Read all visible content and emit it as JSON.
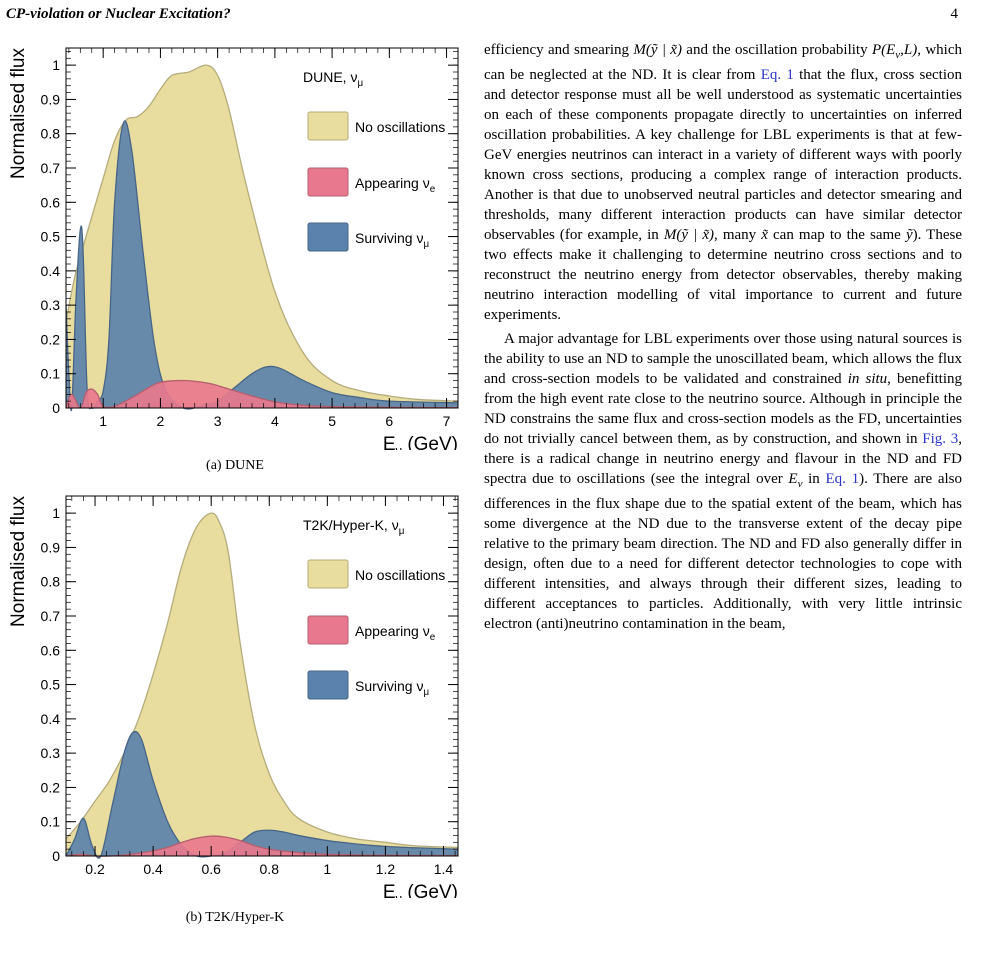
{
  "header": {
    "running_title": "CP-violation or Nuclear Excitation?",
    "page_number": "4"
  },
  "figures": [
    {
      "caption": "(a) DUNE",
      "chart_data": {
        "type": "area",
        "title": "DUNE, ν_μ",
        "xlabel": "E_ν (GeV)",
        "ylabel": "Normalised flux",
        "xlim": [
          0.35,
          7.2
        ],
        "ylim": [
          0,
          1.05
        ],
        "x_ticks": [
          "1",
          "2",
          "3",
          "4",
          "5",
          "6",
          "7"
        ],
        "y_ticks": [
          "0",
          "0.1",
          "0.2",
          "0.3",
          "0.4",
          "0.5",
          "0.6",
          "0.7",
          "0.8",
          "0.9",
          "1"
        ],
        "legend_position": "top-right",
        "series": [
          {
            "name": "No oscillations",
            "color": "#e8dc9e",
            "x": [
              0.35,
              0.5,
              0.7,
              1.0,
              1.2,
              1.4,
              1.6,
              1.8,
              2.0,
              2.2,
              2.5,
              2.8,
              3.0,
              3.2,
              3.5,
              4.0,
              4.5,
              5.0,
              5.5,
              6.0,
              6.5,
              7.2
            ],
            "values": [
              0.25,
              0.38,
              0.5,
              0.67,
              0.78,
              0.84,
              0.85,
              0.88,
              0.93,
              0.97,
              0.98,
              1.0,
              0.97,
              0.87,
              0.65,
              0.34,
              0.16,
              0.08,
              0.05,
              0.035,
              0.025,
              0.02
            ]
          },
          {
            "name": "Appearing ν_e",
            "color": "#e8788d",
            "x": [
              0.35,
              0.45,
              0.6,
              0.7,
              0.8,
              0.9,
              1.0,
              1.2,
              1.5,
              1.8,
              2.0,
              2.3,
              2.6,
              2.9,
              3.2,
              3.6,
              4.0,
              4.5,
              5.0,
              5.5,
              6.0,
              7.2
            ],
            "values": [
              0.0,
              0.04,
              0.0,
              0.045,
              0.055,
              0.04,
              0.005,
              0.005,
              0.03,
              0.06,
              0.075,
              0.08,
              0.078,
              0.07,
              0.055,
              0.035,
              0.018,
              0.008,
              0.004,
              0.003,
              0.002,
              0.001
            ]
          },
          {
            "name": "Surviving ν_μ",
            "color": "#5b82ad",
            "x": [
              0.35,
              0.4,
              0.45,
              0.52,
              0.6,
              0.65,
              0.72,
              0.8,
              0.9,
              1.0,
              1.1,
              1.2,
              1.35,
              1.5,
              1.7,
              1.9,
              2.1,
              2.4,
              2.7,
              3.0,
              3.3,
              3.6,
              3.85,
              4.1,
              4.5,
              5.0,
              5.5,
              6.0,
              7.2
            ],
            "values": [
              0.3,
              0.1,
              0.0,
              0.3,
              0.52,
              0.45,
              0.05,
              0.0,
              0.02,
              0.05,
              0.2,
              0.6,
              0.83,
              0.75,
              0.45,
              0.18,
              0.05,
              0.0,
              0.005,
              0.02,
              0.06,
              0.1,
              0.12,
              0.115,
              0.08,
              0.045,
              0.03,
              0.02,
              0.015
            ]
          }
        ]
      }
    },
    {
      "caption": "(b) T2K/Hyper-K",
      "chart_data": {
        "type": "area",
        "title": "T2K/Hyper-K, ν_μ",
        "xlabel": "E_ν (GeV)",
        "ylabel": "Normalised flux",
        "xlim": [
          0.1,
          1.45
        ],
        "ylim": [
          0,
          1.05
        ],
        "x_ticks": [
          "0.2",
          "0.4",
          "0.6",
          "0.8",
          "1",
          "1.2",
          "1.4"
        ],
        "y_ticks": [
          "0",
          "0.1",
          "0.2",
          "0.3",
          "0.4",
          "0.5",
          "0.6",
          "0.7",
          "0.8",
          "0.9",
          "1"
        ],
        "legend_position": "top-right",
        "series": [
          {
            "name": "No oscillations",
            "color": "#e8dc9e",
            "x": [
              0.1,
              0.15,
              0.2,
              0.25,
              0.3,
              0.35,
              0.4,
              0.45,
              0.5,
              0.55,
              0.6,
              0.63,
              0.66,
              0.7,
              0.75,
              0.8,
              0.85,
              0.9,
              1.0,
              1.1,
              1.2,
              1.3,
              1.45
            ],
            "values": [
              0.05,
              0.1,
              0.16,
              0.22,
              0.3,
              0.4,
              0.53,
              0.68,
              0.85,
              0.96,
              1.0,
              0.97,
              0.88,
              0.62,
              0.38,
              0.24,
              0.16,
              0.11,
              0.07,
              0.05,
              0.04,
              0.03,
              0.025
            ]
          },
          {
            "name": "Appearing ν_e",
            "color": "#e8788d",
            "x": [
              0.1,
              0.15,
              0.2,
              0.25,
              0.3,
              0.35,
              0.4,
              0.45,
              0.5,
              0.55,
              0.6,
              0.65,
              0.7,
              0.75,
              0.8,
              0.9,
              1.0,
              1.1,
              1.2,
              1.45
            ],
            "values": [
              0.0,
              0.005,
              0.0,
              0.0,
              0.003,
              0.008,
              0.015,
              0.025,
              0.04,
              0.052,
              0.058,
              0.055,
              0.045,
              0.03,
              0.02,
              0.01,
              0.005,
              0.003,
              0.002,
              0.001
            ]
          },
          {
            "name": "Surviving ν_μ",
            "color": "#5b82ad",
            "x": [
              0.1,
              0.13,
              0.16,
              0.19,
              0.22,
              0.26,
              0.3,
              0.33,
              0.36,
              0.4,
              0.45,
              0.5,
              0.55,
              0.6,
              0.65,
              0.7,
              0.75,
              0.8,
              0.85,
              0.9,
              1.0,
              1.1,
              1.2,
              1.3,
              1.45
            ],
            "values": [
              0.0,
              0.05,
              0.11,
              0.03,
              0.0,
              0.15,
              0.3,
              0.36,
              0.34,
              0.22,
              0.1,
              0.03,
              0.0,
              0.0,
              0.01,
              0.04,
              0.07,
              0.075,
              0.07,
              0.06,
              0.045,
              0.035,
              0.028,
              0.024,
              0.02
            ]
          }
        ]
      }
    }
  ],
  "body": {
    "paragraph1": [
      {
        "t": "efficiency and smearing "
      },
      {
        "t": "M(ỹ | x̃)",
        "math": true
      },
      {
        "t": " and the oscillation probability "
      },
      {
        "t": "P(E",
        "math": true
      },
      {
        "t": "ν",
        "math": true,
        "sub": true
      },
      {
        "t": ",L)",
        "math": true
      },
      {
        "t": ", which can be neglected at the ND. It is clear from "
      },
      {
        "t": "Eq. 1",
        "ref": true
      },
      {
        "t": " that the flux, cross section and detector response must all be well understood as systematic uncertainties on each of these components propagate directly to uncertainties on inferred oscillation probabilities. A key challenge for LBL experiments is that at few-GeV energies neutrinos can interact in a variety of different ways with poorly known cross sections, producing a complex range of interaction products. Another is that due to unobserved neutral particles and detector smearing and thresholds, many different interaction products can have similar detector observables (for example, in "
      },
      {
        "t": "M(ỹ | x̃)",
        "math": true
      },
      {
        "t": ", many "
      },
      {
        "t": "x̃",
        "math": true
      },
      {
        "t": " can map to the same "
      },
      {
        "t": "ỹ",
        "math": true
      },
      {
        "t": "). These two effects make it challenging to determine neutrino cross sections and to reconstruct the neutrino energy from detector observables, thereby making neutrino interaction modelling of vital importance to current and future experiments."
      }
    ],
    "paragraph2": [
      {
        "t": "A major advantage for LBL experiments over those using natural sources is the ability to use an ND to sample the unoscillated beam, which allows the flux and cross-section models to be validated and constrained "
      },
      {
        "t": "in situ",
        "math": true
      },
      {
        "t": ", benefitting from the high event rate close to the neutrino source. Although in principle the ND constrains the same flux and cross-section models as the FD, uncertainties do not trivially cancel between them, as by construction, and shown in "
      },
      {
        "t": "Fig. 3",
        "ref": true
      },
      {
        "t": ", there is a radical change in neutrino energy and flavour in the ND and FD spectra due to oscillations (see the integral over "
      },
      {
        "t": "E",
        "math": true
      },
      {
        "t": "ν",
        "math": true,
        "sub": true
      },
      {
        "t": " in "
      },
      {
        "t": "Eq. 1",
        "ref": true
      },
      {
        "t": "). There are also differences in the flux shape due to the spatial extent of the beam, which has some divergence at the ND due to the transverse extent of the decay pipe relative to the primary beam direction. The ND and FD also generally differ in design, often due to a need for different detector technologies to cope with different intensities, and always through their different sizes, leading to different acceptances to particles. Additionally, with very little intrinsic electron (anti)neutrino contamination in the beam,"
      }
    ]
  }
}
